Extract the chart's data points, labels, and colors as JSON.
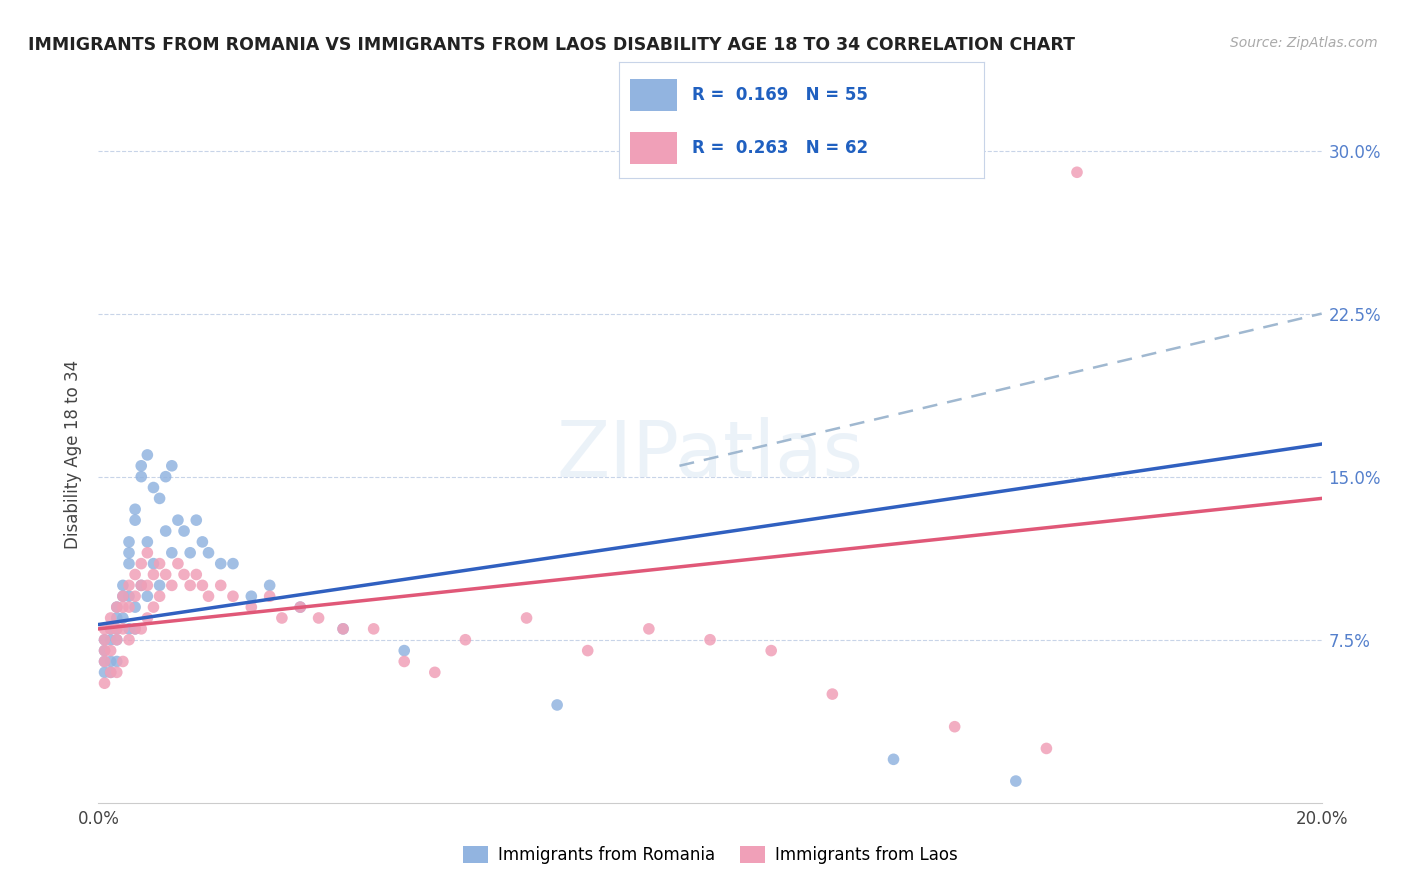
{
  "title": "IMMIGRANTS FROM ROMANIA VS IMMIGRANTS FROM LAOS DISABILITY AGE 18 TO 34 CORRELATION CHART",
  "source": "Source: ZipAtlas.com",
  "ylabel": "Disability Age 18 to 34",
  "xlim": [
    0.0,
    0.2
  ],
  "ylim": [
    0.0,
    0.32
  ],
  "romania_R": 0.169,
  "romania_N": 55,
  "laos_R": 0.263,
  "laos_N": 62,
  "romania_color": "#92b4e0",
  "laos_color": "#f0a0b8",
  "romania_line_color": "#3060c0",
  "laos_line_color": "#e05878",
  "dashed_line_color": "#a0b8d0",
  "legend_text_color": "#2060c0",
  "romania_x": [
    0.001,
    0.001,
    0.001,
    0.001,
    0.002,
    0.002,
    0.002,
    0.002,
    0.003,
    0.003,
    0.003,
    0.003,
    0.003,
    0.004,
    0.004,
    0.004,
    0.005,
    0.005,
    0.005,
    0.005,
    0.005,
    0.006,
    0.006,
    0.006,
    0.006,
    0.007,
    0.007,
    0.007,
    0.008,
    0.008,
    0.008,
    0.009,
    0.009,
    0.01,
    0.01,
    0.011,
    0.011,
    0.012,
    0.012,
    0.013,
    0.014,
    0.015,
    0.016,
    0.017,
    0.018,
    0.02,
    0.022,
    0.025,
    0.028,
    0.033,
    0.04,
    0.05,
    0.075,
    0.13,
    0.15
  ],
  "romania_y": [
    0.075,
    0.07,
    0.065,
    0.06,
    0.08,
    0.075,
    0.065,
    0.06,
    0.09,
    0.085,
    0.08,
    0.075,
    0.065,
    0.1,
    0.095,
    0.085,
    0.12,
    0.115,
    0.11,
    0.095,
    0.08,
    0.135,
    0.13,
    0.09,
    0.08,
    0.155,
    0.15,
    0.1,
    0.16,
    0.12,
    0.095,
    0.145,
    0.11,
    0.14,
    0.1,
    0.15,
    0.125,
    0.155,
    0.115,
    0.13,
    0.125,
    0.115,
    0.13,
    0.12,
    0.115,
    0.11,
    0.11,
    0.095,
    0.1,
    0.09,
    0.08,
    0.07,
    0.045,
    0.02,
    0.01
  ],
  "laos_x": [
    0.001,
    0.001,
    0.001,
    0.001,
    0.001,
    0.002,
    0.002,
    0.002,
    0.002,
    0.003,
    0.003,
    0.003,
    0.003,
    0.004,
    0.004,
    0.004,
    0.004,
    0.005,
    0.005,
    0.005,
    0.006,
    0.006,
    0.006,
    0.007,
    0.007,
    0.007,
    0.008,
    0.008,
    0.008,
    0.009,
    0.009,
    0.01,
    0.01,
    0.011,
    0.012,
    0.013,
    0.014,
    0.015,
    0.016,
    0.017,
    0.018,
    0.02,
    0.022,
    0.025,
    0.028,
    0.03,
    0.033,
    0.036,
    0.04,
    0.045,
    0.05,
    0.055,
    0.06,
    0.07,
    0.08,
    0.09,
    0.1,
    0.11,
    0.12,
    0.14,
    0.155,
    0.16
  ],
  "laos_y": [
    0.08,
    0.075,
    0.07,
    0.065,
    0.055,
    0.085,
    0.08,
    0.07,
    0.06,
    0.09,
    0.08,
    0.075,
    0.06,
    0.095,
    0.09,
    0.08,
    0.065,
    0.1,
    0.09,
    0.075,
    0.105,
    0.095,
    0.08,
    0.11,
    0.1,
    0.08,
    0.115,
    0.1,
    0.085,
    0.105,
    0.09,
    0.11,
    0.095,
    0.105,
    0.1,
    0.11,
    0.105,
    0.1,
    0.105,
    0.1,
    0.095,
    0.1,
    0.095,
    0.09,
    0.095,
    0.085,
    0.09,
    0.085,
    0.08,
    0.08,
    0.065,
    0.06,
    0.075,
    0.085,
    0.07,
    0.08,
    0.075,
    0.07,
    0.05,
    0.035,
    0.025,
    0.29
  ],
  "romania_line_x": [
    0.0,
    0.2
  ],
  "romania_line_y": [
    0.082,
    0.165
  ],
  "laos_line_x": [
    0.0,
    0.2
  ],
  "laos_line_y": [
    0.08,
    0.14
  ],
  "dashed_line_x": [
    0.095,
    0.2
  ],
  "dashed_line_y": [
    0.155,
    0.225
  ]
}
